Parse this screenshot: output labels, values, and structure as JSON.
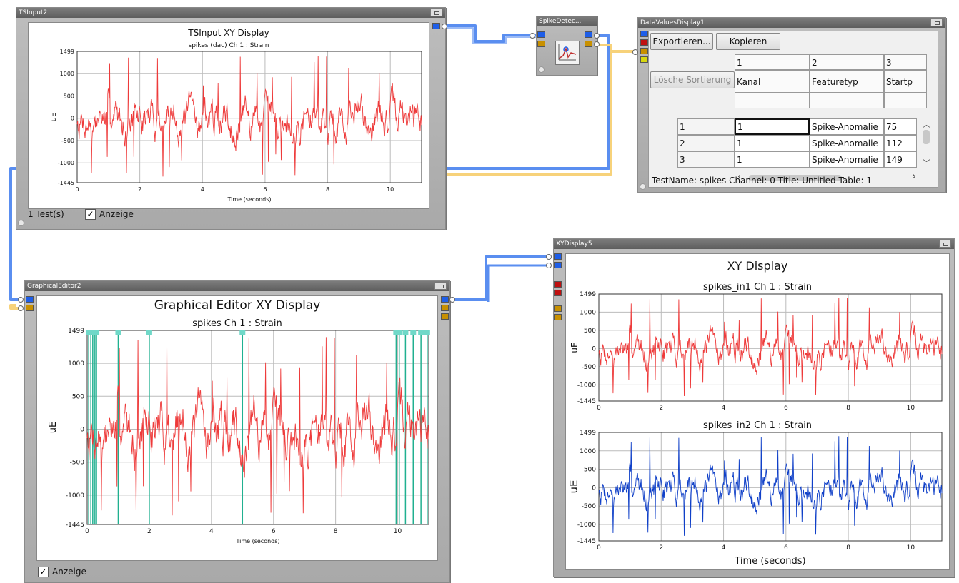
{
  "panels": {
    "tsinput": {
      "title": "TSInput2",
      "footer_tests": "1 Test(s)",
      "footer_check": "Anzeige"
    },
    "spikedetect": {
      "title": "SpikeDetec..."
    },
    "datavalues": {
      "title": "DataValuesDisplay1",
      "export_label": "Exportieren...",
      "copy_label": "Kopieren",
      "clear_sort_label": "Lösche Sortierung",
      "col_numbers": [
        "1",
        "2",
        "3"
      ],
      "col_headers": [
        "Kanal",
        "Featuretyp",
        "Startp"
      ],
      "rows": [
        {
          "index": "1",
          "kanal": "1",
          "typ": "Spike-Anomalie",
          "start": "75"
        },
        {
          "index": "2",
          "kanal": "1",
          "typ": "Spike-Anomalie",
          "start": "112"
        },
        {
          "index": "3",
          "kanal": "1",
          "typ": "Spike-Anomalie",
          "start": "149"
        }
      ],
      "status_text": "TestName: spikes  Channel: 0  Title: Untitled  Table: 1"
    },
    "graphical": {
      "title": "GraphicalEditor2",
      "footer_check": "Anzeige"
    },
    "xydisplay": {
      "title": "XYDisplay5"
    }
  },
  "colors": {
    "wire_blue": "#5a8ef0",
    "wire_gold": "#f7d27a",
    "trace_red": "#ee3a3a",
    "trace_blue": "#1040c8",
    "marker_teal": "#20b090"
  },
  "chart_data": [
    {
      "id": "tsinput",
      "type": "line",
      "title": "TSInput XY Display",
      "subtitle": "spikes (dac)  Ch 1 : Strain",
      "xlabel": "Time (seconds)",
      "ylabel": "uE",
      "xlim": [
        0,
        11
      ],
      "ylim": [
        -1445,
        1499
      ],
      "xticks": [
        "0",
        "2",
        "4",
        "6",
        "8",
        "10"
      ],
      "yticks": [
        "1499",
        "1000",
        "500",
        "0",
        "-500",
        "-1000",
        "-1445"
      ],
      "series": [
        {
          "color": "#ee3a3a",
          "seed": 7
        }
      ]
    },
    {
      "id": "graphical",
      "type": "line",
      "title": "Graphical Editor XY Display",
      "subtitle": "spikes  Ch 1 : Strain",
      "xlabel": "Time (seconds)",
      "ylabel": "uE",
      "xlim": [
        0,
        11
      ],
      "ylim": [
        -1445,
        1499
      ],
      "xticks": [
        "0",
        "2",
        "4",
        "6",
        "8",
        "10"
      ],
      "yticks": [
        "1499",
        "1000",
        "500",
        "0",
        "-500",
        "-1000",
        "-1445"
      ],
      "markers_x": [
        0.05,
        0.12,
        0.18,
        0.25,
        0.3,
        1.0,
        2.0,
        5.0,
        9.95,
        10.05,
        10.25,
        10.5,
        10.75,
        10.95
      ],
      "series": [
        {
          "color": "#ee3a3a",
          "seed": 7
        }
      ]
    },
    {
      "id": "xy1",
      "type": "line",
      "title": "XY Display",
      "subtitle": "spikes_in1  Ch 1 : Strain",
      "xlabel": "",
      "ylabel": "uE",
      "xlim": [
        0,
        11
      ],
      "ylim": [
        -1445,
        1499
      ],
      "xticks": [
        "0",
        "2",
        "4",
        "6",
        "8",
        "10"
      ],
      "yticks": [
        "1499",
        "1000",
        "500",
        "0",
        "-500",
        "-1000",
        "-1445"
      ],
      "series": [
        {
          "color": "#ee3a3a",
          "seed": 7
        }
      ]
    },
    {
      "id": "xy2",
      "type": "line",
      "title": "",
      "subtitle": "spikes_in2  Ch 1 : Strain",
      "xlabel": "Time (seconds)",
      "ylabel": "uE",
      "xlim": [
        0,
        11
      ],
      "ylim": [
        -1445,
        1499
      ],
      "xticks": [
        "0",
        "2",
        "4",
        "6",
        "8",
        "10"
      ],
      "yticks": [
        "1499",
        "1000",
        "500",
        "0",
        "-500",
        "-1000",
        "-1445"
      ],
      "series": [
        {
          "color": "#1040c8",
          "seed": 7
        }
      ]
    }
  ]
}
